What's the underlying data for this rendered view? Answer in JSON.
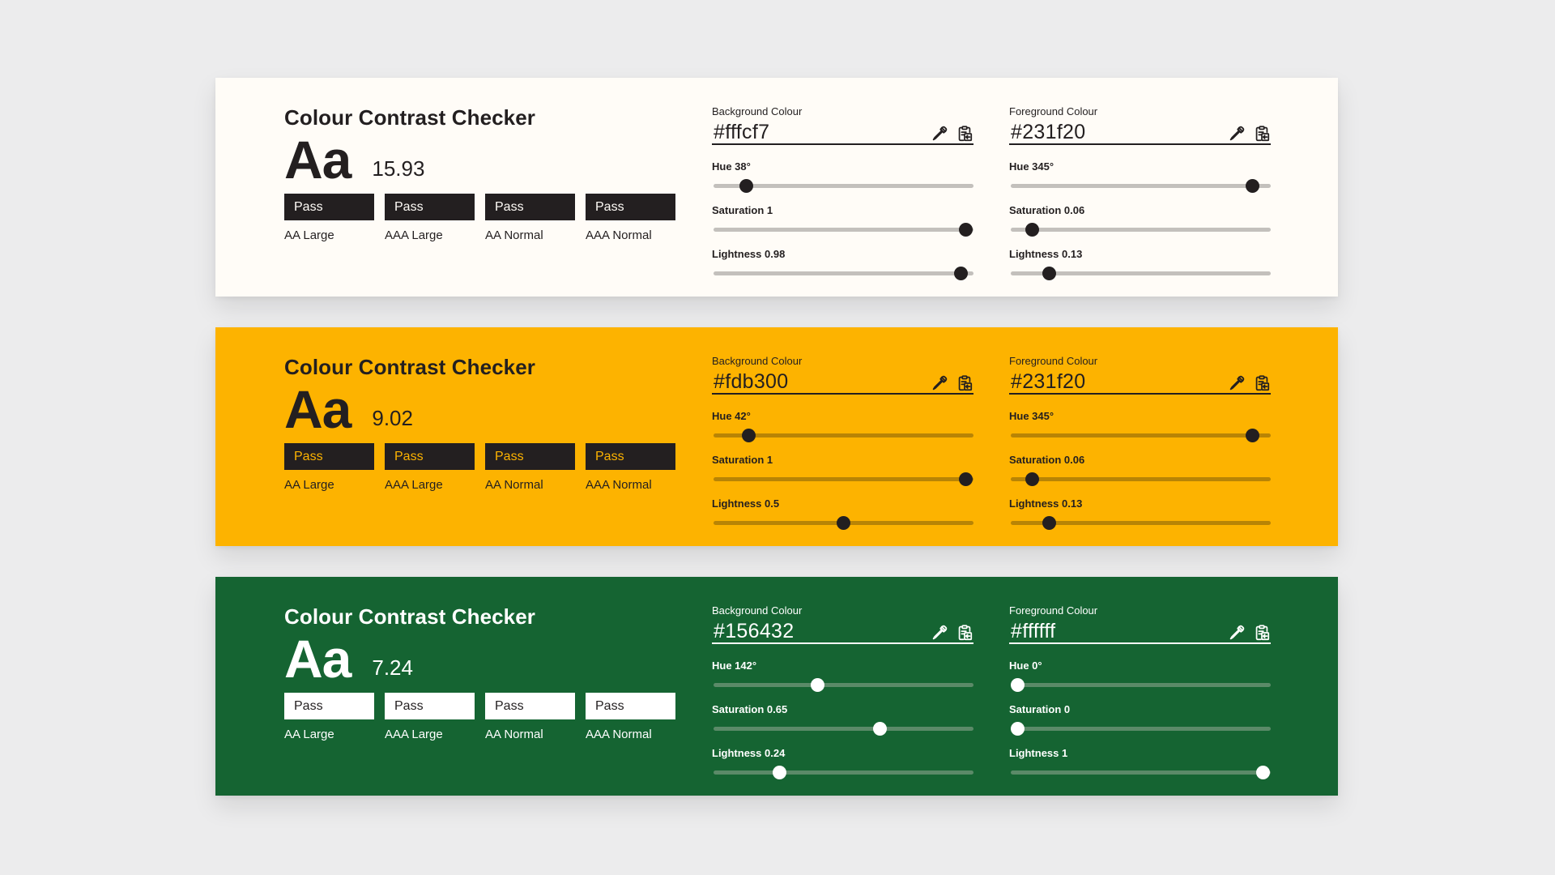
{
  "panels": [
    {
      "theme": "light",
      "title": "Colour Contrast Checker",
      "sample_text": "Aa",
      "ratio": "15.93",
      "badges": [
        {
          "status": "Pass",
          "label": "AA Large"
        },
        {
          "status": "Pass",
          "label": "AAA Large"
        },
        {
          "status": "Pass",
          "label": "AA Normal"
        },
        {
          "status": "Pass",
          "label": "AAA Normal"
        }
      ],
      "background": {
        "heading": "Background Colour",
        "hex": "#fffcf7",
        "hue_label": "Hue 38°",
        "hue": 38,
        "saturation_label": "Saturation 1",
        "saturation": 1,
        "lightness_label": "Lightness 0.98",
        "lightness": 0.98
      },
      "foreground": {
        "heading": "Foreground Colour",
        "hex": "#231f20",
        "hue_label": "Hue 345°",
        "hue": 345,
        "saturation_label": "Saturation 0.06",
        "saturation": 0.06,
        "lightness_label": "Lightness 0.13",
        "lightness": 0.13
      }
    },
    {
      "theme": "yellow",
      "title": "Colour Contrast Checker",
      "sample_text": "Aa",
      "ratio": "9.02",
      "badges": [
        {
          "status": "Pass",
          "label": "AA Large"
        },
        {
          "status": "Pass",
          "label": "AAA Large"
        },
        {
          "status": "Pass",
          "label": "AA Normal"
        },
        {
          "status": "Pass",
          "label": "AAA Normal"
        }
      ],
      "background": {
        "heading": "Background Colour",
        "hex": "#fdb300",
        "hue_label": "Hue 42°",
        "hue": 42,
        "saturation_label": "Saturation 1",
        "saturation": 1,
        "lightness_label": "Lightness 0.5",
        "lightness": 0.5
      },
      "foreground": {
        "heading": "Foreground Colour",
        "hex": "#231f20",
        "hue_label": "Hue 345°",
        "hue": 345,
        "saturation_label": "Saturation 0.06",
        "saturation": 0.06,
        "lightness_label": "Lightness 0.13",
        "lightness": 0.13
      }
    },
    {
      "theme": "green",
      "title": "Colour Contrast Checker",
      "sample_text": "Aa",
      "ratio": "7.24",
      "badges": [
        {
          "status": "Pass",
          "label": "AA Large"
        },
        {
          "status": "Pass",
          "label": "AAA Large"
        },
        {
          "status": "Pass",
          "label": "AA Normal"
        },
        {
          "status": "Pass",
          "label": "AAA Normal"
        }
      ],
      "background": {
        "heading": "Background Colour",
        "hex": "#156432",
        "hue_label": "Hue 142°",
        "hue": 142,
        "saturation_label": "Saturation 0.65",
        "saturation": 0.65,
        "lightness_label": "Lightness 0.24",
        "lightness": 0.24
      },
      "foreground": {
        "heading": "Foreground Colour",
        "hex": "#ffffff",
        "hue_label": "Hue 0°",
        "hue": 0,
        "saturation_label": "Saturation 0",
        "saturation": 0,
        "lightness_label": "Lightness 1",
        "lightness": 1
      }
    }
  ],
  "icons": {
    "picker": "eyedropper-icon",
    "paste": "clipboard-paste-icon"
  },
  "colors": {
    "page_background": "#ececed",
    "dark_text": "#231f20"
  }
}
